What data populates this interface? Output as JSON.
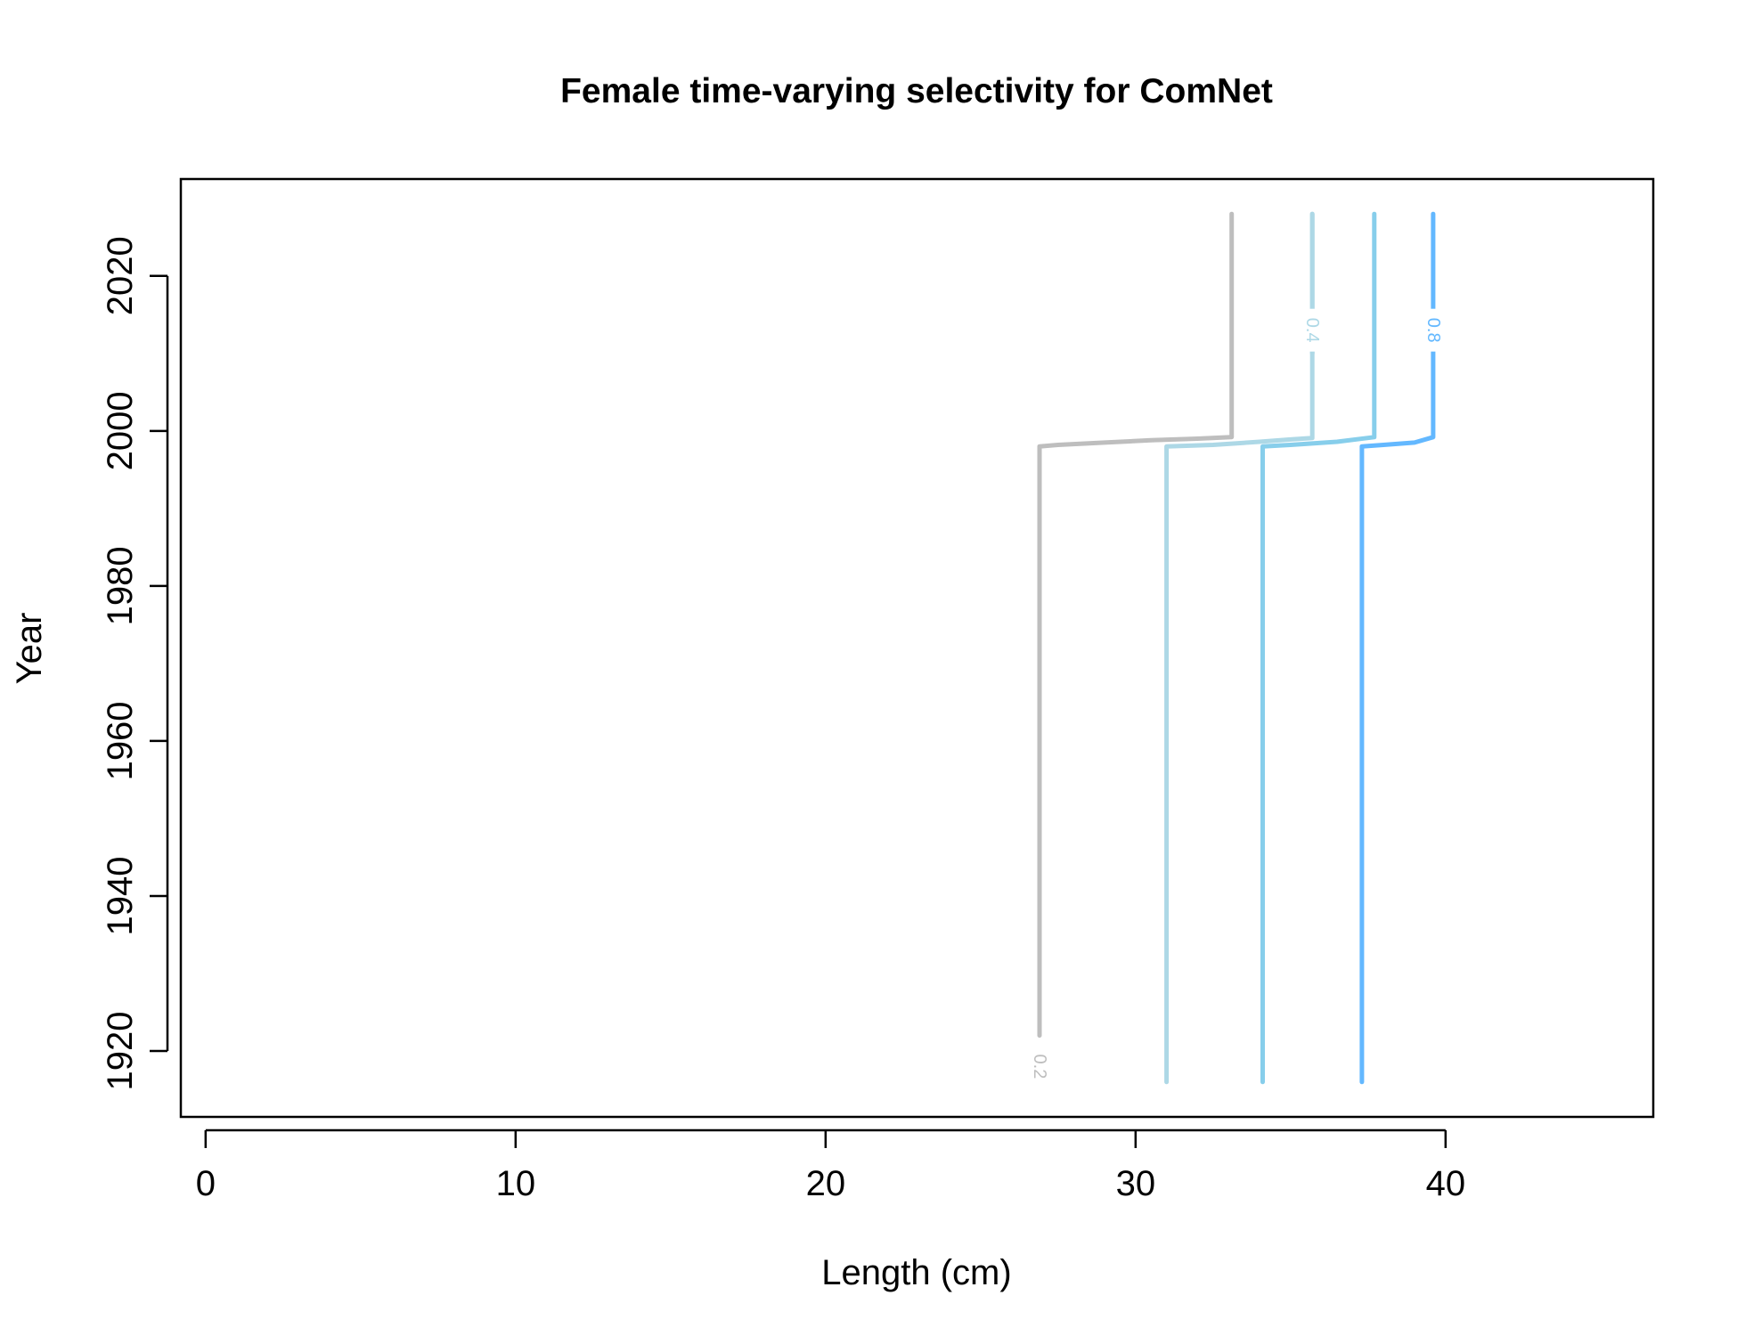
{
  "chart_data": {
    "type": "line",
    "title": "Female time-varying selectivity for ComNet",
    "xlabel": "Length (cm)",
    "ylabel": "Year",
    "xlim": [
      -0.8,
      46.7
    ],
    "ylim": [
      1911.5,
      2032.5
    ],
    "x_ticks": [
      0,
      10,
      20,
      30,
      40
    ],
    "y_ticks": [
      1920,
      1940,
      1960,
      1980,
      2000,
      2020
    ],
    "grid": false,
    "legend": "none",
    "series": [
      {
        "name": "0.2",
        "color": "#bebebe",
        "points": [
          [
            26.9,
            1922
          ],
          [
            26.9,
            1998
          ],
          [
            27.5,
            1998.2
          ],
          [
            29.0,
            1998.5
          ],
          [
            30.5,
            1998.8
          ],
          [
            32.0,
            1999.0
          ],
          [
            33.1,
            1999.2
          ],
          [
            33.1,
            2028
          ]
        ],
        "label_at": [
          26.9,
          1918
        ]
      },
      {
        "name": "",
        "color": "#add8e6",
        "points": [
          [
            31.0,
            1916
          ],
          [
            31.0,
            1998
          ],
          [
            32.5,
            1998.2
          ],
          [
            34.0,
            1998.6
          ],
          [
            35.0,
            1998.9
          ],
          [
            35.7,
            1999.1
          ],
          [
            35.7,
            2028
          ]
        ]
      },
      {
        "name": "0.4",
        "color": "#add8e6",
        "points": [
          [
            35.7,
            2010
          ],
          [
            35.7,
            2028
          ]
        ],
        "label_at": [
          35.7,
          2013
        ]
      },
      {
        "name": "",
        "color": "#87ceeb",
        "points": [
          [
            34.1,
            1916
          ],
          [
            34.1,
            1998
          ],
          [
            35.0,
            1998.2
          ],
          [
            36.5,
            1998.6
          ],
          [
            37.7,
            1999.2
          ],
          [
            37.7,
            2028
          ]
        ]
      },
      {
        "name": "0.8",
        "color": "#63b8ff",
        "points": [
          [
            37.3,
            1916
          ],
          [
            37.3,
            1998
          ],
          [
            38.0,
            1998.2
          ],
          [
            39.0,
            1998.5
          ],
          [
            39.6,
            1999.2
          ],
          [
            39.6,
            2028
          ]
        ],
        "label_at": [
          39.6,
          2013
        ]
      }
    ]
  }
}
